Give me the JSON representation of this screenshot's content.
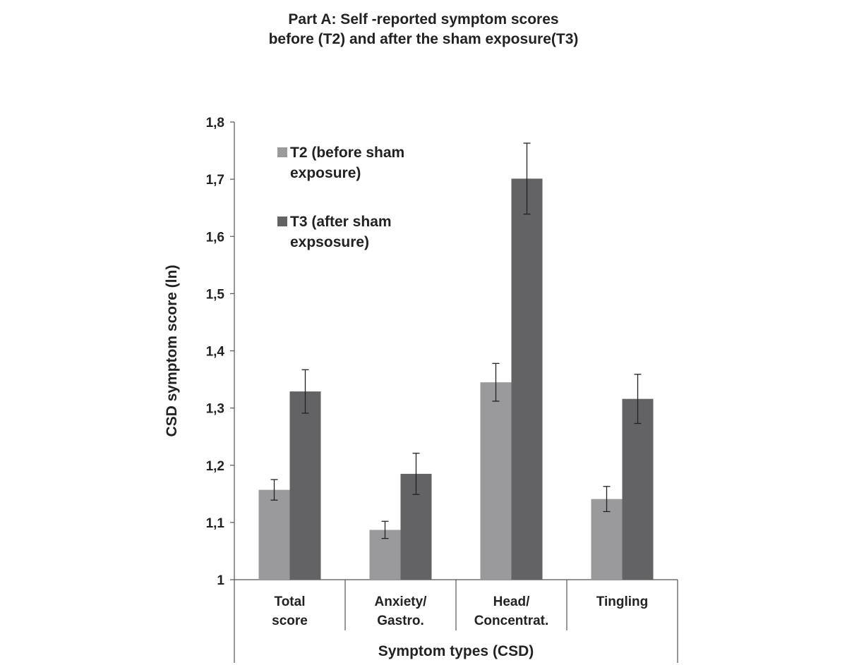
{
  "chart_data": {
    "type": "bar",
    "title": [
      "Part A: Self -reported symptom scores",
      "before (T2) and after the sham exposure(T3)"
    ],
    "xlabel": "Symptom types (CSD)",
    "ylabel": "CSD symptom score (ln)",
    "ylim": [
      1,
      1.8
    ],
    "yticks": [
      "1",
      "1,1",
      "1,2",
      "1,3",
      "1,4",
      "1,5",
      "1,6",
      "1,7",
      "1,8"
    ],
    "categories": [
      [
        "Total",
        "score"
      ],
      [
        "Anxiety/",
        "Gastro."
      ],
      [
        "Head/",
        "Concentrat."
      ],
      [
        "Tingling"
      ]
    ],
    "series": [
      {
        "name": [
          "T2 (before sham",
          "exposure)"
        ],
        "color": "#9a9a9c",
        "values": [
          1.157,
          1.087,
          1.345,
          1.141
        ],
        "error": [
          0.018,
          0.015,
          0.033,
          0.022
        ]
      },
      {
        "name": [
          "T3 (after sham",
          "expsosure)"
        ],
        "color": "#636365",
        "values": [
          1.329,
          1.185,
          1.701,
          1.316
        ],
        "error": [
          0.038,
          0.036,
          0.062,
          0.043
        ]
      }
    ],
    "legend_position": "top-left",
    "grid": false
  }
}
